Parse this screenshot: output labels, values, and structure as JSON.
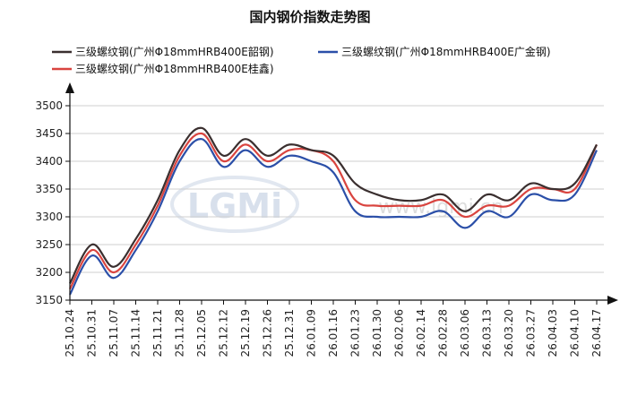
{
  "chart_data": {
    "type": "line",
    "title": "国内钢价指数走势图",
    "xlabel": "",
    "ylabel": "",
    "ylim": [
      3150,
      3500
    ],
    "yticks": [
      3150,
      3200,
      3250,
      3300,
      3350,
      3400,
      3450,
      3500
    ],
    "grid": true,
    "legend_position": "top",
    "x": [
      "25.10.24",
      "25.10.31",
      "25.11.07",
      "25.11.14",
      "25.11.21",
      "25.11.28",
      "25.12.05",
      "25.12.12",
      "25.12.19",
      "25.12.26",
      "25.12.31",
      "26.01.09",
      "26.01.16",
      "26.01.23",
      "26.01.30",
      "26.02.06",
      "26.02.14",
      "26.02.28",
      "26.03.06",
      "26.03.13",
      "26.03.20",
      "26.03.27",
      "26.04.03",
      "26.04.10",
      "26.04.17"
    ],
    "series": [
      {
        "name": "三级螺纹钢(广州Φ18mmHRB400E韶钢)",
        "color": "#3a2f2f",
        "values": [
          3180,
          3250,
          3210,
          3260,
          3330,
          3420,
          3460,
          3410,
          3440,
          3410,
          3430,
          3420,
          3410,
          3360,
          3340,
          3330,
          3330,
          3340,
          3310,
          3340,
          3330,
          3360,
          3350,
          3360,
          3430
        ]
      },
      {
        "name": "三级螺纹钢(广州Φ18mmHRB400E广金钢)",
        "color": "#2b4fa8",
        "values": [
          3160,
          3230,
          3190,
          3240,
          3310,
          3400,
          3440,
          3390,
          3420,
          3390,
          3410,
          3400,
          3380,
          3310,
          3300,
          3300,
          3300,
          3310,
          3280,
          3310,
          3300,
          3340,
          3330,
          3340,
          3420
        ]
      },
      {
        "name": "三级螺纹钢(广州Φ18mmHRB400E桂鑫)",
        "color": "#d9443f",
        "values": [
          3170,
          3240,
          3200,
          3250,
          3320,
          3410,
          3450,
          3400,
          3430,
          3400,
          3420,
          3420,
          3400,
          3330,
          3320,
          3320,
          3320,
          3330,
          3300,
          3320,
          3320,
          3350,
          3350,
          3350,
          3430
        ]
      }
    ],
    "watermark": "LGMi"
  }
}
